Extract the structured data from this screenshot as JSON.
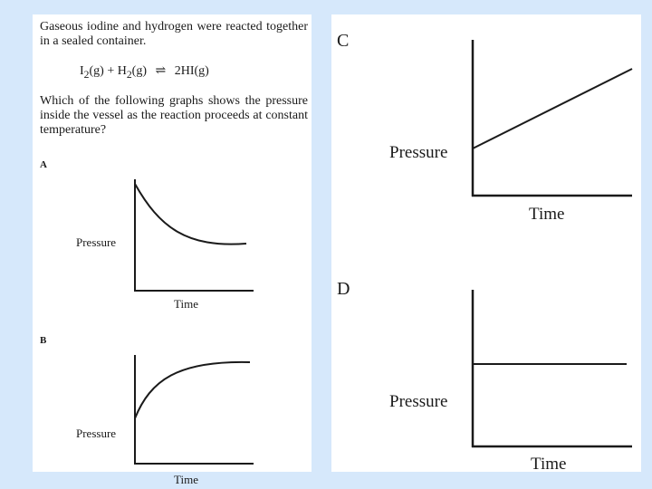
{
  "question": {
    "intro": "Gaseous iodine and hydrogen were reacted together in a sealed container.",
    "equation": {
      "left_part1": "I",
      "left_sub1": "2",
      "left_part2": "(g) + H",
      "left_sub2": "2",
      "left_part3": "(g)",
      "arrow": "⇌",
      "right": "2HI(g)"
    },
    "prompt": "Which of the following graphs shows the pressure inside the vessel as the reaction proceeds at constant temperature?"
  },
  "options": [
    {
      "letter": "A",
      "ylabel": "Pressure",
      "xlabel": "Time",
      "trend": "decreasing"
    },
    {
      "letter": "B",
      "ylabel": "Pressure",
      "xlabel": "Time",
      "trend": "increasing"
    },
    {
      "letter": "C",
      "ylabel": "Pressure",
      "xlabel": "Time",
      "trend": "linear-increase"
    },
    {
      "letter": "D",
      "ylabel": "Pressure",
      "xlabel": "Time",
      "trend": "constant"
    }
  ]
}
